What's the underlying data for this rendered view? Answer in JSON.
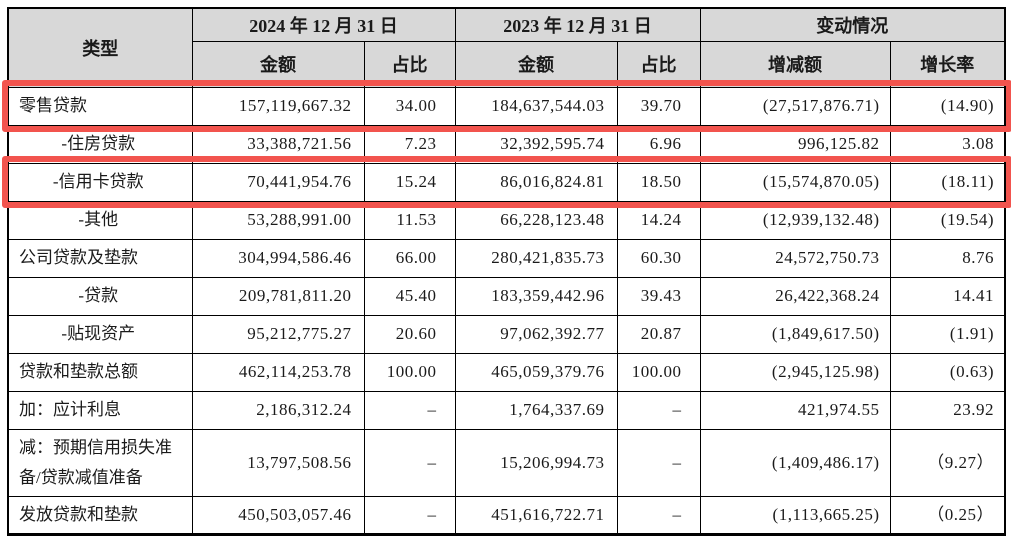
{
  "table": {
    "header": {
      "col_type": "类型",
      "group_2024": "2024 年 12 月 31 日",
      "group_2023": "2023 年 12 月 31 日",
      "group_change": "变动情况"
    },
    "sub_headers": [
      "金额",
      "占比",
      "金额",
      "占比",
      "增减额",
      "增长率"
    ],
    "rows": [
      {
        "label": "零售贷款",
        "sub": false,
        "amount_2024": "157,119,667.32",
        "ratio_2024": "34.00",
        "amount_2023": "184,637,544.03",
        "ratio_2023": "39.70",
        "change_amount": "(27,517,876.71)",
        "growth_rate": "(14.90)",
        "highlight": true
      },
      {
        "label": "-住房贷款",
        "sub": true,
        "amount_2024": "33,388,721.56",
        "ratio_2024": "7.23",
        "amount_2023": "32,392,595.74",
        "ratio_2023": "6.96",
        "change_amount": "996,125.82",
        "growth_rate": "3.08",
        "highlight": false
      },
      {
        "label": "-信用卡贷款",
        "sub": true,
        "amount_2024": "70,441,954.76",
        "ratio_2024": "15.24",
        "amount_2023": "86,016,824.81",
        "ratio_2023": "18.50",
        "change_amount": "(15,574,870.05)",
        "growth_rate": "(18.11)",
        "highlight": true
      },
      {
        "label": "-其他",
        "sub": true,
        "amount_2024": "53,288,991.00",
        "ratio_2024": "11.53",
        "amount_2023": "66,228,123.48",
        "ratio_2023": "14.24",
        "change_amount": "(12,939,132.48)",
        "growth_rate": "(19.54)",
        "highlight": false
      },
      {
        "label": "公司贷款及垫款",
        "sub": false,
        "amount_2024": "304,994,586.46",
        "ratio_2024": "66.00",
        "amount_2023": "280,421,835.73",
        "ratio_2023": "60.30",
        "change_amount": "24,572,750.73",
        "growth_rate": "8.76",
        "highlight": false
      },
      {
        "label": "-贷款",
        "sub": true,
        "amount_2024": "209,781,811.20",
        "ratio_2024": "45.40",
        "amount_2023": "183,359,442.96",
        "ratio_2023": "39.43",
        "change_amount": "26,422,368.24",
        "growth_rate": "14.41",
        "highlight": false
      },
      {
        "label": "-贴现资产",
        "sub": true,
        "amount_2024": "95,212,775.27",
        "ratio_2024": "20.60",
        "amount_2023": "97,062,392.77",
        "ratio_2023": "20.87",
        "change_amount": "(1,849,617.50)",
        "growth_rate": "(1.91)",
        "highlight": false
      },
      {
        "label": "贷款和垫款总额",
        "sub": false,
        "amount_2024": "462,114,253.78",
        "ratio_2024": "100.00",
        "amount_2023": "465,059,379.76",
        "ratio_2023": "100.00",
        "change_amount": "(2,945,125.98)",
        "growth_rate": "(0.63)",
        "highlight": false
      },
      {
        "label": "加：应计利息",
        "sub": false,
        "amount_2024": "2,186,312.24",
        "ratio_2024": "–",
        "amount_2023": "1,764,337.69",
        "ratio_2023": "–",
        "change_amount": "421,974.55",
        "growth_rate": "23.92",
        "highlight": false
      },
      {
        "label": "减：预期信用损失准备/贷款减值准备",
        "sub": false,
        "amount_2024": "13,797,508.56",
        "ratio_2024": "–",
        "amount_2023": "15,206,994.73",
        "ratio_2023": "–",
        "change_amount": "(1,409,486.17)",
        "growth_rate": "（9.27）",
        "highlight": false
      },
      {
        "label": "发放贷款和垫款",
        "sub": false,
        "amount_2024": "450,503,057.46",
        "ratio_2024": "–",
        "amount_2023": "451,616,722.71",
        "ratio_2023": "–",
        "change_amount": "(1,113,665.25)",
        "growth_rate": "（0.25）",
        "highlight": false
      }
    ],
    "highlight_color": "#f2544e",
    "header_bg": "#d8d8d8",
    "border_color": "#000000"
  }
}
